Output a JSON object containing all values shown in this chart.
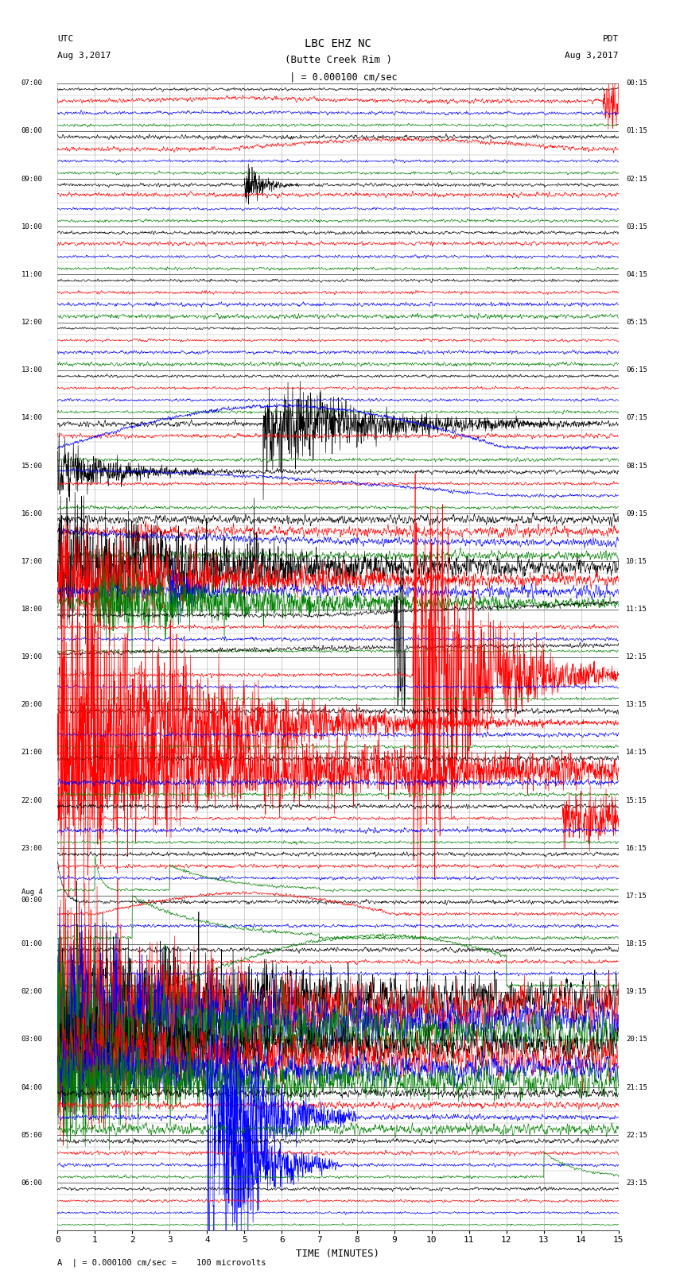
{
  "title_line1": "LBC EHZ NC",
  "title_line2": "(Butte Creek Rim )",
  "title_scale": "  | = 0.000100 cm/sec",
  "label_utc": "UTC",
  "label_utc_date": "Aug 3,2017",
  "label_pdt": "PDT",
  "label_pdt_date": "Aug 3,2017",
  "xlabel": "TIME (MINUTES)",
  "footnote": "| = 0.000100 cm/sec =    100 microvolts",
  "xmin": 0,
  "xmax": 15,
  "xticks": [
    0,
    1,
    2,
    3,
    4,
    5,
    6,
    7,
    8,
    9,
    10,
    11,
    12,
    13,
    14,
    15
  ],
  "background_color": "#ffffff",
  "grid_color": "#aaaaaa",
  "row_colors": [
    "#000000",
    "#ff0000",
    "#0000ff",
    "#008000"
  ],
  "utc_labels": [
    "07:00",
    "08:00",
    "09:00",
    "10:00",
    "11:00",
    "12:00",
    "13:00",
    "14:00",
    "15:00",
    "16:00",
    "17:00",
    "18:00",
    "19:00",
    "20:00",
    "21:00",
    "22:00",
    "23:00",
    "Aug 4\n00:00",
    "01:00",
    "02:00",
    "03:00",
    "04:00",
    "05:00",
    "06:00"
  ],
  "pdt_labels": [
    "00:15",
    "01:15",
    "02:15",
    "03:15",
    "04:15",
    "05:15",
    "06:15",
    "07:15",
    "08:15",
    "09:15",
    "10:15",
    "11:15",
    "12:15",
    "13:15",
    "14:15",
    "15:15",
    "16:15",
    "17:15",
    "18:15",
    "19:15",
    "20:15",
    "21:15",
    "22:15",
    "23:15"
  ],
  "num_hours": 24,
  "traces_per_hour": 4,
  "figsize": [
    8.5,
    16.13
  ],
  "dpi": 100
}
